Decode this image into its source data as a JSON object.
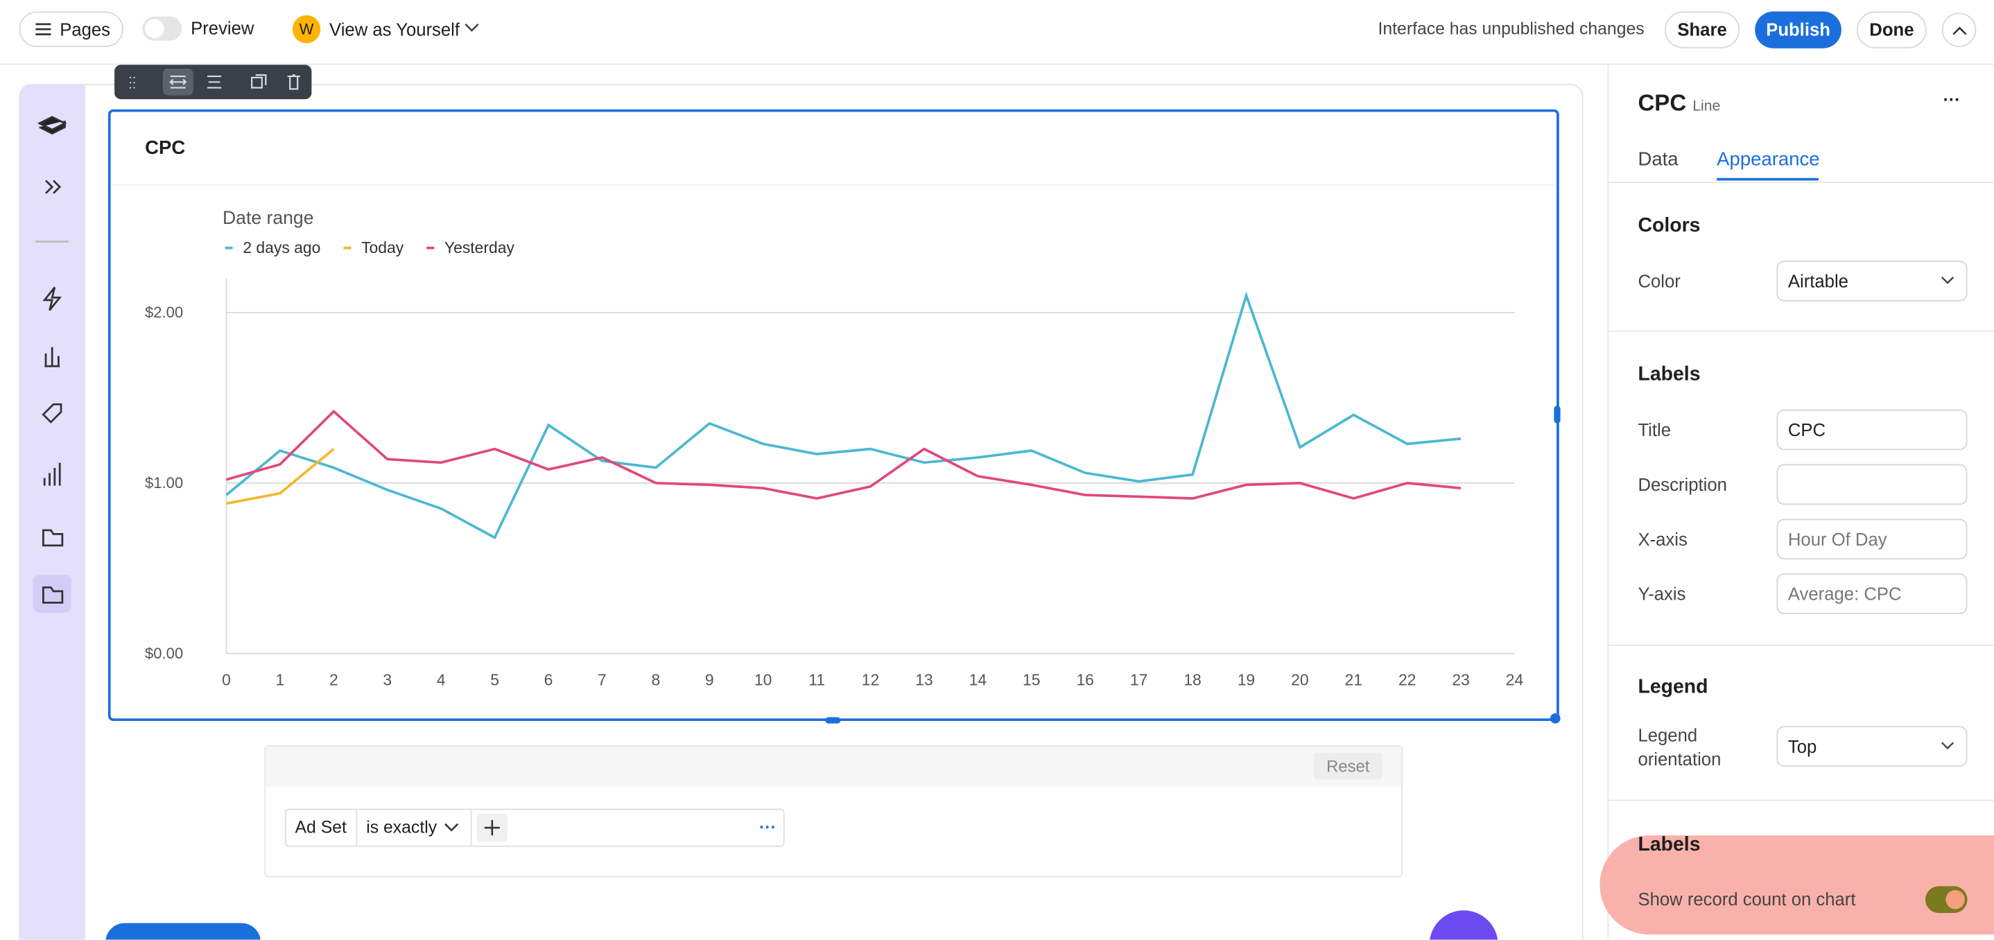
{
  "top_bar": {
    "pages": "Pages",
    "preview": "Preview",
    "avatar": "W",
    "view_as": "View as Yourself",
    "status": "Interface has unpublished changes",
    "share": "Share",
    "publish": "Publish",
    "done": "Done"
  },
  "filter": {
    "reset": "Reset",
    "field": "Ad Set",
    "operator": "is exactly",
    "more": "···"
  },
  "panel": {
    "title": "CPC",
    "subtitle": "Line",
    "tabs": [
      "Data",
      "Appearance"
    ],
    "colors": {
      "heading": "Colors",
      "color_label": "Color",
      "color_value": "Airtable"
    },
    "labels": {
      "heading": "Labels",
      "title_label": "Title",
      "title_value": "CPC",
      "description_label": "Description",
      "x_axis_label": "X-axis",
      "x_axis_placeholder": "Hour Of Day",
      "y_axis_label": "Y-axis",
      "y_axis_placeholder": "Average: CPC"
    },
    "legend": {
      "heading": "Legend",
      "orientation_label": "Legend orientation",
      "orientation_value": "Top"
    },
    "labels_more": {
      "heading": "Labels",
      "record_count": "Show record count on chart"
    }
  },
  "chart_data": {
    "type": "line",
    "title": "CPC",
    "legend_title": "Date range",
    "legend": "top",
    "grid": true,
    "x": [
      0,
      1,
      2,
      3,
      4,
      5,
      6,
      7,
      8,
      9,
      10,
      11,
      12,
      13,
      14,
      15,
      16,
      17,
      18,
      19,
      20,
      21,
      22,
      23
    ],
    "xlim": [
      0,
      24
    ],
    "xticks": [
      0,
      1,
      2,
      3,
      4,
      5,
      6,
      7,
      8,
      9,
      10,
      11,
      12,
      13,
      14,
      15,
      16,
      17,
      18,
      19,
      20,
      21,
      22,
      23,
      24
    ],
    "ylim": [
      0,
      2.2
    ],
    "yticks": [
      {
        "value": 0,
        "label": "$0.00"
      },
      {
        "value": 1,
        "label": "$1.00"
      },
      {
        "value": 2,
        "label": "$2.00"
      }
    ],
    "series": [
      {
        "name": "2 days ago",
        "color": "#4bb8d0",
        "values": [
          0.93,
          1.19,
          1.09,
          0.96,
          0.85,
          0.68,
          1.34,
          1.13,
          1.09,
          1.35,
          1.23,
          1.17,
          1.2,
          1.12,
          1.15,
          1.19,
          1.06,
          1.01,
          1.05,
          2.1,
          1.21,
          1.4,
          1.23,
          1.26
        ]
      },
      {
        "name": "Today",
        "color": "#f4b630",
        "values": [
          0.88,
          0.94,
          1.2,
          null,
          null,
          null,
          null,
          null,
          null,
          null,
          null,
          null,
          null,
          null,
          null,
          null,
          null,
          null,
          null,
          null,
          null,
          null,
          null,
          null
        ]
      },
      {
        "name": "Yesterday",
        "color": "#e0487c",
        "values": [
          1.02,
          1.11,
          1.42,
          1.14,
          1.12,
          1.2,
          1.08,
          1.15,
          1.0,
          0.99,
          0.97,
          0.91,
          0.98,
          1.2,
          1.04,
          0.99,
          0.93,
          0.92,
          0.91,
          0.99,
          1.0,
          0.91,
          1.0,
          0.97
        ]
      }
    ]
  }
}
